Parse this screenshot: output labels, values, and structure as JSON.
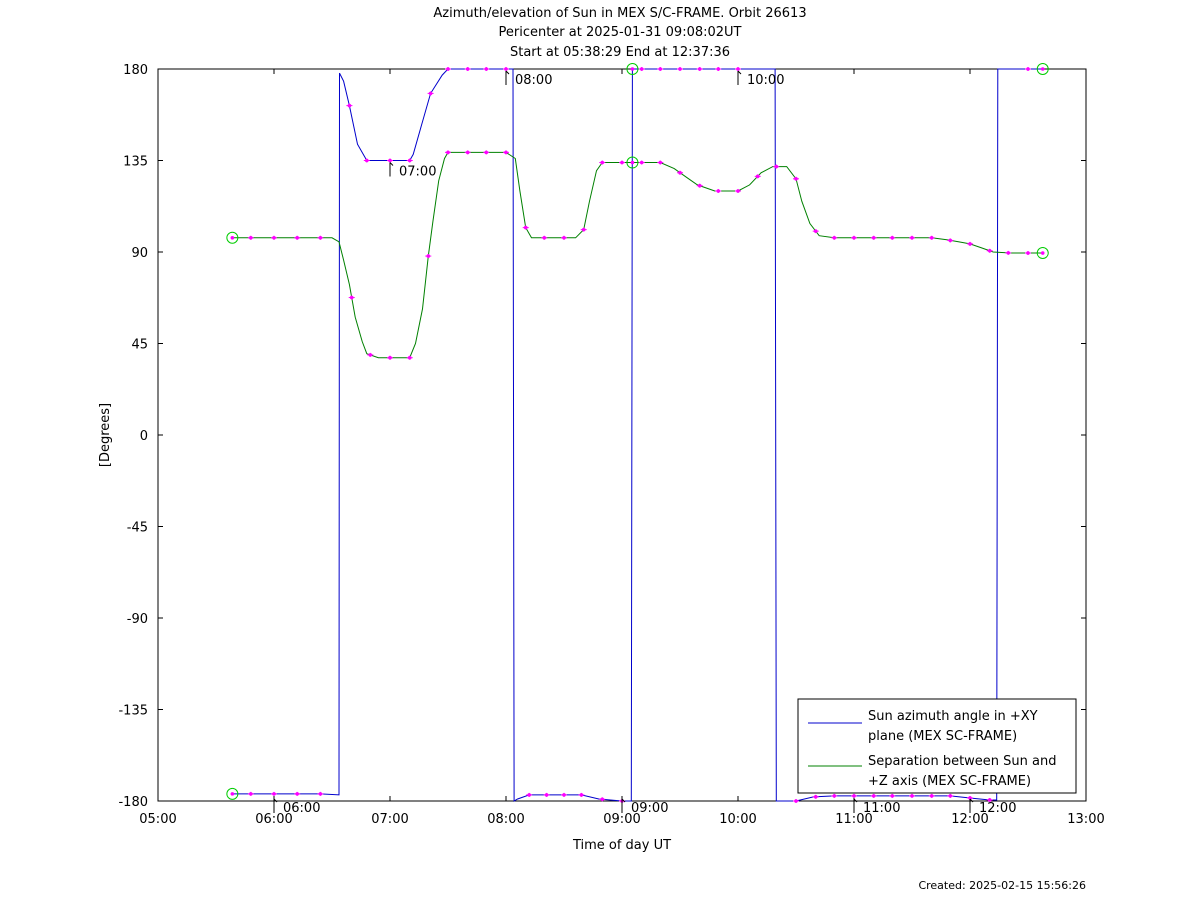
{
  "chart_data": {
    "type": "line",
    "title_lines": [
      "Azimuth/elevation of Sun in MEX S/C-FRAME.  Orbit 26613",
      "Pericenter at 2025-01-31 09:08:02UT",
      "Start at 05:38:29 End at 12:37:36"
    ],
    "xlabel": "Time of day UT",
    "ylabel": "[Degrees]",
    "xlim": [
      5.0,
      13.0
    ],
    "ylim": [
      -180,
      180
    ],
    "xticks": [
      {
        "v": 5,
        "label": "05:00"
      },
      {
        "v": 6,
        "label": "06:00"
      },
      {
        "v": 7,
        "label": "07:00"
      },
      {
        "v": 8,
        "label": "08:00"
      },
      {
        "v": 9,
        "label": "09:00"
      },
      {
        "v": 10,
        "label": "10:00"
      },
      {
        "v": 11,
        "label": "11:00"
      },
      {
        "v": 12,
        "label": "12:00"
      },
      {
        "v": 13,
        "label": "13:00"
      }
    ],
    "yticks": [
      {
        "v": 180,
        "label": "180"
      },
      {
        "v": 135,
        "label": "135"
      },
      {
        "v": 90,
        "label": "90"
      },
      {
        "v": 45,
        "label": "45"
      },
      {
        "v": 0,
        "label": "0"
      },
      {
        "v": -45,
        "label": "-45"
      },
      {
        "v": -90,
        "label": "-90"
      },
      {
        "v": -135,
        "label": "-135"
      },
      {
        "v": -180,
        "label": "-180"
      }
    ],
    "annotations": [
      {
        "x": 6.0,
        "y": -180,
        "label": "06:00",
        "side": "below"
      },
      {
        "x": 7.0,
        "y": 135,
        "label": "07:00",
        "side": "below"
      },
      {
        "x": 8.0,
        "y": 180,
        "label": "08:00",
        "side": "below"
      },
      {
        "x": 9.0,
        "y": -180,
        "label": "09:00",
        "side": "below"
      },
      {
        "x": 10.0,
        "y": 180,
        "label": "10:00",
        "side": "below"
      },
      {
        "x": 11.0,
        "y": -180,
        "label": "11:00",
        "side": "below"
      },
      {
        "x": 12.0,
        "y": -180,
        "label": "12:00",
        "side": "below"
      }
    ],
    "legend_position": "bottom-right",
    "series": [
      {
        "name": "Sun azimuth angle in +XY plane (MEX SC-FRAME)",
        "legend_lines": [
          "Sun azimuth angle in +XY",
          "plane (MEX SC-FRAME)"
        ],
        "color": "#0000cc",
        "points": [
          [
            5.641,
            -176.5
          ],
          [
            5.8,
            -176.5
          ],
          [
            6.0,
            -176.5
          ],
          [
            6.2,
            -176.5
          ],
          [
            6.4,
            -176.5
          ],
          [
            6.56,
            -177
          ],
          [
            6.565,
            178
          ],
          [
            6.6,
            174
          ],
          [
            6.65,
            162
          ],
          [
            6.72,
            143
          ],
          [
            6.8,
            135
          ],
          [
            7.0,
            135
          ],
          [
            7.17,
            135
          ],
          [
            7.2,
            138
          ],
          [
            7.27,
            152
          ],
          [
            7.35,
            168
          ],
          [
            7.45,
            177
          ],
          [
            7.5,
            180
          ],
          [
            7.7,
            180
          ],
          [
            7.85,
            180
          ],
          [
            8.0,
            180
          ],
          [
            8.06,
            180
          ],
          [
            8.07,
            -180
          ],
          [
            8.1,
            -179
          ],
          [
            8.2,
            -177
          ],
          [
            8.35,
            -177
          ],
          [
            8.5,
            -177
          ],
          [
            8.65,
            -177
          ],
          [
            8.8,
            -179
          ],
          [
            9.0,
            -180
          ],
          [
            9.08,
            -180
          ],
          [
            9.09,
            180
          ],
          [
            9.15,
            180
          ],
          [
            9.35,
            180
          ],
          [
            9.5,
            180
          ],
          [
            9.67,
            180
          ],
          [
            9.85,
            180
          ],
          [
            10.0,
            180
          ],
          [
            10.2,
            180
          ],
          [
            10.32,
            180
          ],
          [
            10.33,
            -180
          ],
          [
            10.5,
            -180
          ],
          [
            10.65,
            -178
          ],
          [
            10.83,
            -177.5
          ],
          [
            11.0,
            -177.5
          ],
          [
            11.17,
            -177.5
          ],
          [
            11.33,
            -177.5
          ],
          [
            11.5,
            -177.5
          ],
          [
            11.67,
            -177.5
          ],
          [
            11.83,
            -177.5
          ],
          [
            12.0,
            -178.5
          ],
          [
            12.17,
            -179.5
          ],
          [
            12.23,
            -179.5
          ],
          [
            12.24,
            180
          ],
          [
            12.35,
            180
          ],
          [
            12.5,
            180
          ],
          [
            12.625,
            180
          ]
        ],
        "breaks": [
          6.562,
          8.065,
          9.085,
          10.325,
          12.235
        ],
        "markers_x": [
          5.8,
          6.0,
          6.2,
          6.4,
          6.65,
          6.8,
          7.0,
          7.17,
          7.35,
          7.5,
          7.67,
          7.83,
          8.0,
          8.2,
          8.35,
          8.5,
          8.65,
          8.83,
          9.0,
          9.17,
          9.33,
          9.5,
          9.67,
          9.83,
          10.0,
          10.5,
          10.67,
          10.83,
          11.0,
          11.17,
          11.33,
          11.5,
          11.67,
          11.83,
          12.0,
          12.17,
          12.5
        ]
      },
      {
        "name": "Separation between Sun and +Z axis (MEX SC-FRAME)",
        "legend_lines": [
          "Separation between Sun and",
          "+Z axis (MEX SC-FRAME)"
        ],
        "color": "#008000",
        "points": [
          [
            5.641,
            97
          ],
          [
            5.8,
            97
          ],
          [
            6.0,
            97
          ],
          [
            6.2,
            97
          ],
          [
            6.4,
            97
          ],
          [
            6.5,
            97
          ],
          [
            6.56,
            95
          ],
          [
            6.6,
            86
          ],
          [
            6.65,
            74
          ],
          [
            6.7,
            58
          ],
          [
            6.76,
            46
          ],
          [
            6.8,
            40
          ],
          [
            6.9,
            38
          ],
          [
            7.0,
            38
          ],
          [
            7.1,
            38
          ],
          [
            7.17,
            38
          ],
          [
            7.22,
            45
          ],
          [
            7.28,
            62
          ],
          [
            7.33,
            88
          ],
          [
            7.37,
            105
          ],
          [
            7.42,
            125
          ],
          [
            7.47,
            136
          ],
          [
            7.5,
            139
          ],
          [
            7.67,
            139
          ],
          [
            7.83,
            139
          ],
          [
            8.0,
            139
          ],
          [
            8.08,
            136
          ],
          [
            8.12,
            120
          ],
          [
            8.17,
            102
          ],
          [
            8.22,
            97
          ],
          [
            8.35,
            97
          ],
          [
            8.5,
            97
          ],
          [
            8.6,
            97
          ],
          [
            8.67,
            101
          ],
          [
            8.72,
            115
          ],
          [
            8.78,
            130
          ],
          [
            8.83,
            134
          ],
          [
            9.0,
            134
          ],
          [
            9.17,
            134
          ],
          [
            9.33,
            134
          ],
          [
            9.45,
            131
          ],
          [
            9.55,
            127
          ],
          [
            9.65,
            123
          ],
          [
            9.8,
            120
          ],
          [
            10.0,
            120
          ],
          [
            10.1,
            123
          ],
          [
            10.2,
            129
          ],
          [
            10.3,
            132
          ],
          [
            10.42,
            132
          ],
          [
            10.5,
            126
          ],
          [
            10.55,
            115
          ],
          [
            10.62,
            104
          ],
          [
            10.7,
            98
          ],
          [
            10.83,
            97
          ],
          [
            11.0,
            97
          ],
          [
            11.17,
            97
          ],
          [
            11.33,
            97
          ],
          [
            11.5,
            97
          ],
          [
            11.67,
            97
          ],
          [
            11.8,
            96
          ],
          [
            11.9,
            95
          ],
          [
            12.0,
            94
          ],
          [
            12.1,
            92
          ],
          [
            12.2,
            90
          ],
          [
            12.35,
            89.5
          ],
          [
            12.5,
            89.5
          ],
          [
            12.625,
            89.5
          ]
        ],
        "breaks": [],
        "markers_x": [
          5.8,
          6.0,
          6.2,
          6.4,
          6.67,
          6.83,
          7.0,
          7.17,
          7.33,
          7.5,
          7.67,
          7.83,
          8.0,
          8.17,
          8.33,
          8.5,
          8.67,
          8.83,
          9.0,
          9.17,
          9.33,
          9.5,
          9.67,
          9.83,
          10.0,
          10.17,
          10.33,
          10.5,
          10.67,
          10.83,
          11.0,
          11.17,
          11.33,
          11.5,
          11.67,
          11.83,
          12.0,
          12.17,
          12.33,
          12.5
        ]
      }
    ],
    "endpoint_circles": [
      {
        "x": 5.641,
        "y": -176.5
      },
      {
        "x": 5.641,
        "y": 97
      },
      {
        "x": 12.627,
        "y": 180
      },
      {
        "x": 12.627,
        "y": 89.5
      },
      {
        "x": 9.09,
        "y": 180
      },
      {
        "x": 9.09,
        "y": 134
      }
    ],
    "marker_color": "#ff00ff",
    "circle_color": "#00cc00"
  },
  "footer": {
    "created": "Created: 2025-02-15 15:56:26"
  }
}
